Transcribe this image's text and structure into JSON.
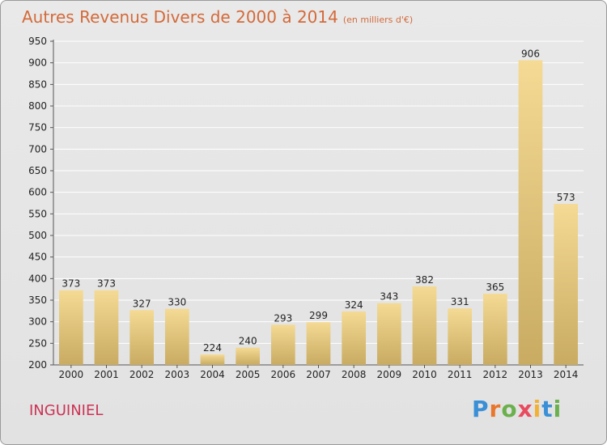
{
  "chart_data": {
    "type": "bar",
    "title": "Autres Revenus Divers de 2000 à 2014",
    "subtitle": "(en milliers d'€)",
    "categories": [
      "2000",
      "2001",
      "2002",
      "2003",
      "2004",
      "2005",
      "2006",
      "2007",
      "2008",
      "2009",
      "2010",
      "2011",
      "2012",
      "2013",
      "2014"
    ],
    "values": [
      373,
      373,
      327,
      330,
      224,
      240,
      293,
      299,
      324,
      343,
      382,
      331,
      365,
      906,
      573
    ],
    "ylim": [
      200,
      950
    ],
    "yticks": [
      200,
      250,
      300,
      350,
      400,
      450,
      500,
      550,
      600,
      650,
      700,
      750,
      800,
      850,
      900,
      950
    ],
    "grid": true,
    "colors": {
      "bar_light": "#f4da94",
      "bar_dark": "#c9ab62",
      "grid": "#ffffff",
      "axis": "#555555"
    }
  },
  "footer": {
    "commune": "INGUINIEL",
    "logo": {
      "text": "Proxiti",
      "letters": [
        {
          "char": "P",
          "color": "#3a8fd6"
        },
        {
          "char": "r",
          "color": "#e8762b"
        },
        {
          "char": "o",
          "color": "#6ab04c"
        },
        {
          "char": "x",
          "color": "#e84a5f"
        },
        {
          "char": "i",
          "color": "#f2b134"
        },
        {
          "char": "t",
          "color": "#3a8fd6"
        },
        {
          "char": "i",
          "color": "#6ab04c"
        }
      ]
    }
  }
}
